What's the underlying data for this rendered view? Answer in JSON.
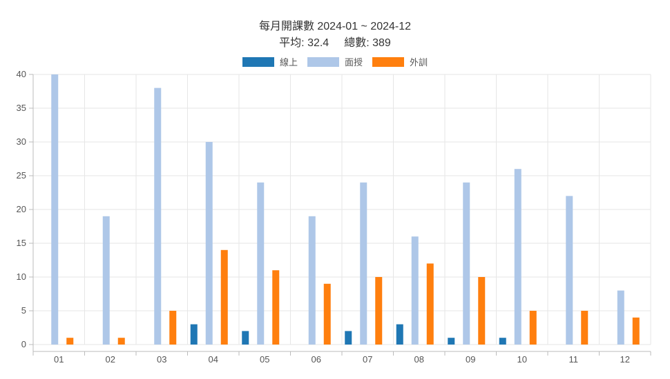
{
  "title_line1": "每月開課數 2024-01 ~ 2024-12",
  "avg_label": "平均: 32.4",
  "total_label": "總數: 389",
  "chart_data": {
    "type": "bar",
    "categories": [
      "01",
      "02",
      "03",
      "04",
      "05",
      "06",
      "07",
      "08",
      "09",
      "10",
      "11",
      "12"
    ],
    "series": [
      {
        "name": "線上",
        "color": "#1f77b4",
        "values": [
          0,
          0,
          0,
          3,
          2,
          0,
          2,
          3,
          1,
          1,
          0,
          0
        ]
      },
      {
        "name": "面授",
        "color": "#aec7e8",
        "values": [
          40,
          19,
          38,
          30,
          24,
          19,
          24,
          16,
          24,
          26,
          22,
          8
        ]
      },
      {
        "name": "外訓",
        "color": "#ff7f0e",
        "values": [
          1,
          1,
          5,
          14,
          11,
          9,
          10,
          12,
          10,
          5,
          5,
          4
        ]
      }
    ],
    "ylim": [
      0,
      40
    ],
    "yticks": [
      0,
      5,
      10,
      15,
      20,
      25,
      30,
      35,
      40
    ],
    "grid": true,
    "legend_position": "top"
  }
}
